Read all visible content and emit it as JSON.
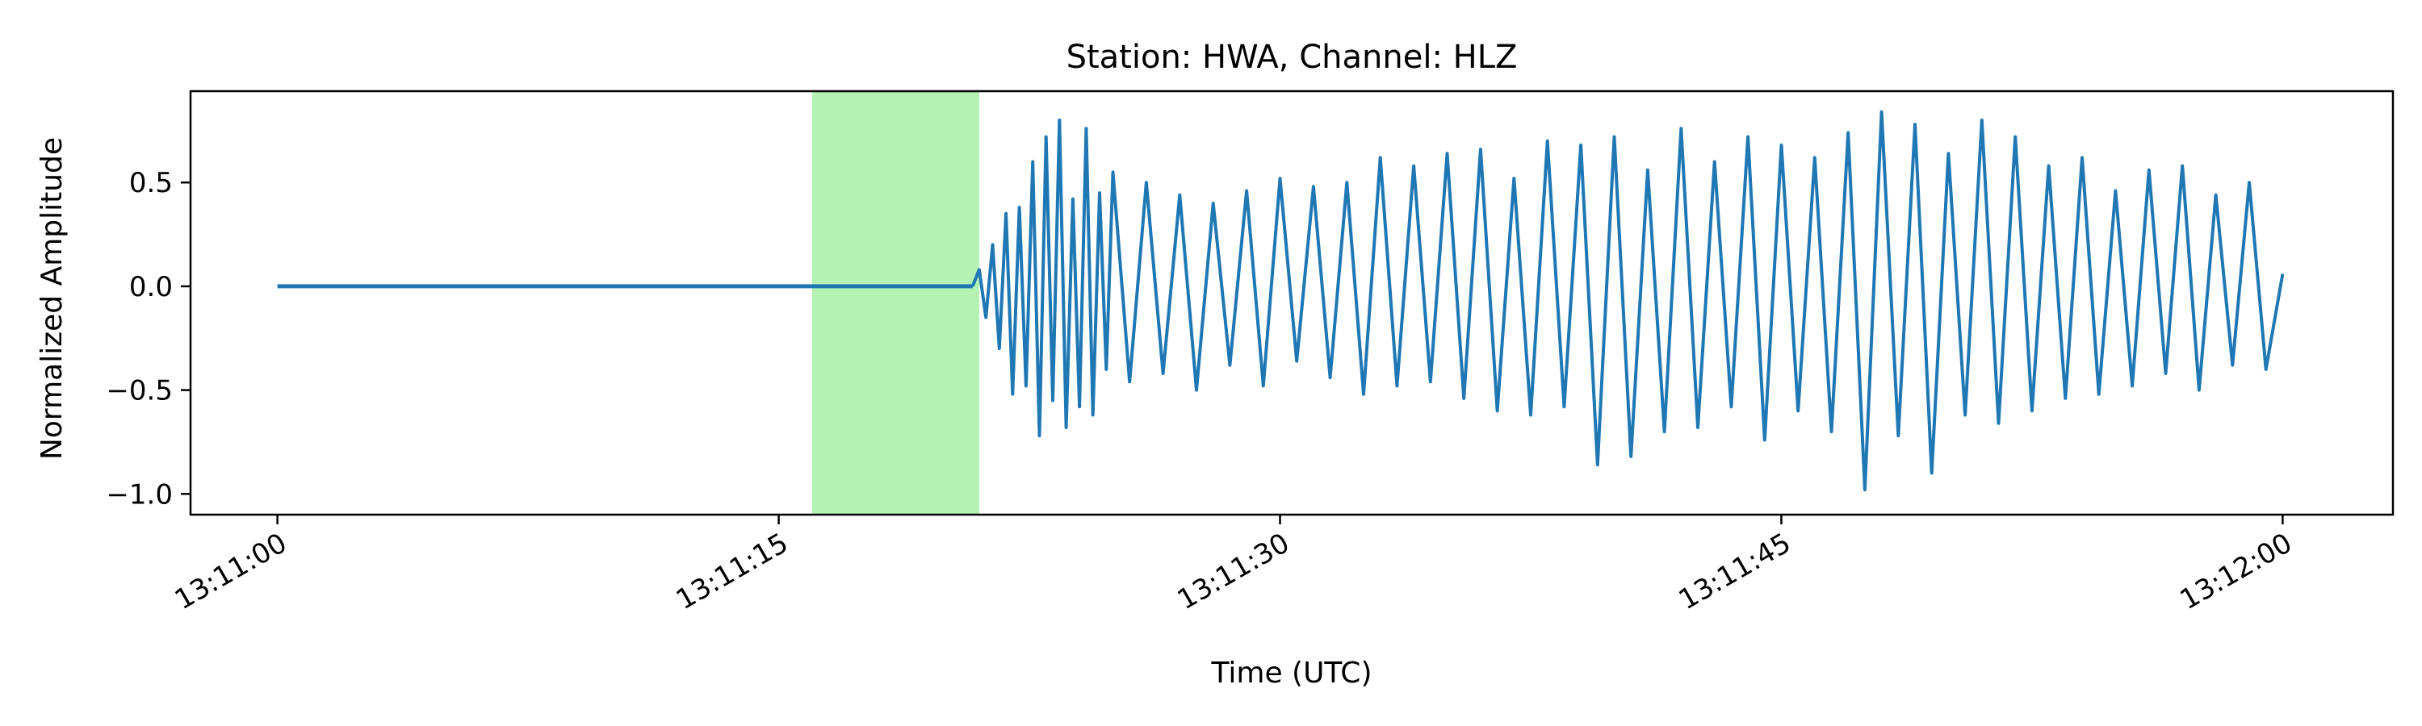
{
  "chart_data": {
    "type": "line",
    "title": "Station: HWA, Channel: HLZ",
    "xlabel": "Time (UTC)",
    "ylabel": "Normalized Amplitude",
    "x_unit": "seconds after 13:11:00 UTC",
    "xlim": [
      -2.6,
      63.3
    ],
    "ylim": [
      -1.1,
      0.94
    ],
    "x_ticks": [
      {
        "value": 0,
        "label": "13:11:00"
      },
      {
        "value": 15,
        "label": "13:11:15"
      },
      {
        "value": 30,
        "label": "13:11:30"
      },
      {
        "value": 45,
        "label": "13:11:45"
      },
      {
        "value": 60,
        "label": "13:12:00"
      }
    ],
    "y_ticks": [
      {
        "value": 0.5,
        "label": "0.5"
      },
      {
        "value": 0.0,
        "label": "0.0"
      },
      {
        "value": -0.5,
        "label": "−0.5"
      },
      {
        "value": -1.0,
        "label": "−1.0"
      }
    ],
    "highlight": {
      "x_start": 16.0,
      "x_end": 21.0,
      "color": "#b3f2b3"
    },
    "grid": false,
    "series": [
      {
        "color": "#1f77b4",
        "quiet_segment": {
          "x_start": 0.0,
          "x_end": 20.8,
          "y": 0.0
        },
        "x": [
          20.8,
          21.0,
          21.2,
          21.4,
          21.6,
          21.8,
          22.0,
          22.2,
          22.4,
          22.6,
          22.8,
          23.0,
          23.2,
          23.4,
          23.6,
          23.8,
          24.0,
          24.2,
          24.4,
          24.6,
          24.8,
          25.0,
          25.5,
          26.0,
          26.5,
          27.0,
          27.5,
          28.0,
          28.5,
          29.0,
          29.5,
          30.0,
          30.5,
          31.0,
          31.5,
          32.0,
          32.5,
          33.0,
          33.5,
          34.0,
          34.5,
          35.0,
          35.5,
          36.0,
          36.5,
          37.0,
          37.5,
          38.0,
          38.5,
          39.0,
          39.5,
          40.0,
          40.5,
          41.0,
          41.5,
          42.0,
          42.5,
          43.0,
          43.5,
          44.0,
          44.5,
          45.0,
          45.5,
          46.0,
          46.5,
          47.0,
          47.5,
          48.0,
          48.5,
          49.0,
          49.5,
          50.0,
          50.5,
          51.0,
          51.5,
          52.0,
          52.5,
          53.0,
          53.5,
          54.0,
          54.5,
          55.0,
          55.5,
          56.0,
          56.5,
          57.0,
          57.5,
          58.0,
          58.5,
          59.0,
          59.5,
          60.0
        ],
        "y": [
          0.0,
          0.08,
          -0.15,
          0.2,
          -0.3,
          0.35,
          -0.52,
          0.38,
          -0.48,
          0.6,
          -0.72,
          0.72,
          -0.55,
          0.8,
          -0.68,
          0.42,
          -0.58,
          0.76,
          -0.62,
          0.45,
          -0.4,
          0.55,
          -0.46,
          0.5,
          -0.42,
          0.44,
          -0.5,
          0.4,
          -0.38,
          0.46,
          -0.48,
          0.52,
          -0.36,
          0.48,
          -0.44,
          0.5,
          -0.52,
          0.62,
          -0.48,
          0.58,
          -0.46,
          0.64,
          -0.54,
          0.66,
          -0.6,
          0.52,
          -0.62,
          0.7,
          -0.58,
          0.68,
          -0.86,
          0.72,
          -0.82,
          0.56,
          -0.7,
          0.76,
          -0.68,
          0.6,
          -0.58,
          0.72,
          -0.74,
          0.68,
          -0.6,
          0.62,
          -0.7,
          0.74,
          -0.98,
          0.84,
          -0.72,
          0.78,
          -0.9,
          0.64,
          -0.62,
          0.8,
          -0.66,
          0.72,
          -0.6,
          0.58,
          -0.54,
          0.62,
          -0.52,
          0.46,
          -0.48,
          0.56,
          -0.42,
          0.58,
          -0.5,
          0.44,
          -0.38,
          0.5,
          -0.4,
          0.06
        ]
      }
    ]
  }
}
